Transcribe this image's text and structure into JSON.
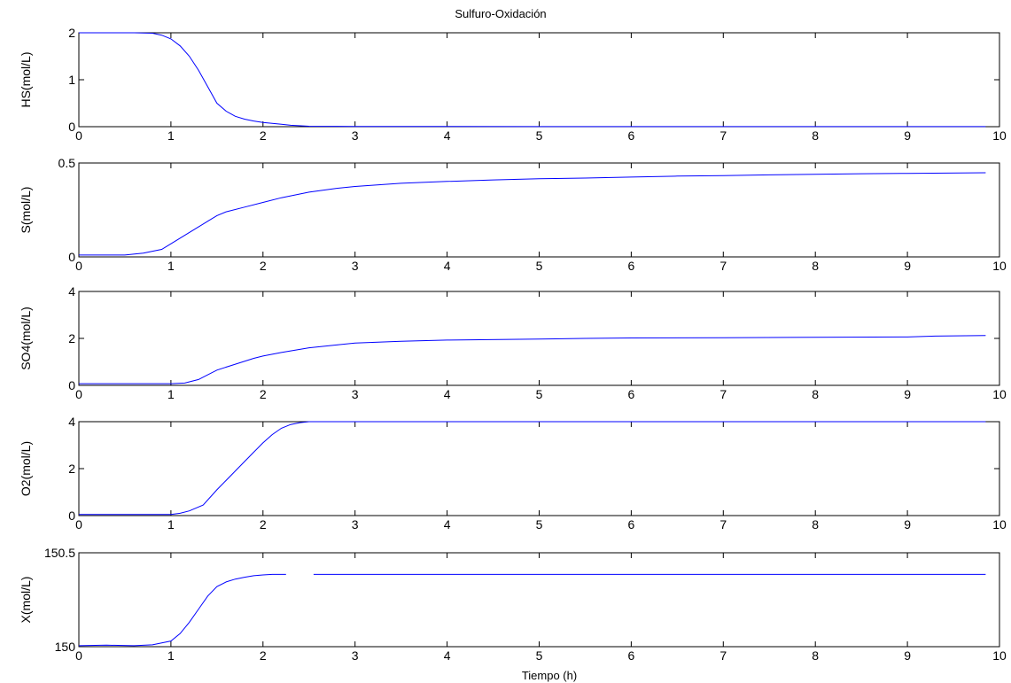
{
  "figure": {
    "title": "Sulfuro-Oxidación",
    "xlabel": "Tiempo (h)",
    "series_color": "#0000ff"
  },
  "chart_data": [
    {
      "type": "line",
      "ylabel": "HS(mol/L)",
      "xlim": [
        0,
        10
      ],
      "ylim": [
        0,
        2
      ],
      "xticks": [
        0,
        1,
        2,
        3,
        4,
        5,
        6,
        7,
        8,
        9,
        10
      ],
      "yticks": [
        0,
        1,
        2
      ],
      "series": [
        {
          "x": [
            0,
            0.6,
            0.8,
            0.9,
            1.0,
            1.1,
            1.2,
            1.3,
            1.4,
            1.5,
            1.6,
            1.7,
            1.8,
            1.9,
            2.0,
            2.1,
            2.2,
            2.3,
            2.5,
            3,
            4,
            5,
            6,
            7,
            8,
            9,
            9.85
          ],
          "y": [
            2,
            2,
            1.99,
            1.95,
            1.87,
            1.72,
            1.5,
            1.2,
            0.85,
            0.5,
            0.33,
            0.22,
            0.16,
            0.12,
            0.09,
            0.07,
            0.05,
            0.03,
            0.01,
            0.005,
            0.003,
            0.002,
            0.002,
            0.002,
            0.002,
            0.002,
            0.002
          ]
        }
      ]
    },
    {
      "type": "line",
      "ylabel": "S(mol/L)",
      "xlim": [
        0,
        10
      ],
      "ylim": [
        0,
        0.5
      ],
      "xticks": [
        0,
        1,
        2,
        3,
        4,
        5,
        6,
        7,
        8,
        9,
        10
      ],
      "yticks": [
        0,
        0.5
      ],
      "series": [
        {
          "x": [
            0,
            0.5,
            0.7,
            0.9,
            1.0,
            1.1,
            1.2,
            1.3,
            1.4,
            1.5,
            1.6,
            1.8,
            2.0,
            2.2,
            2.5,
            2.8,
            3.0,
            3.5,
            4,
            4.5,
            5,
            5.5,
            6,
            6.5,
            7,
            7.5,
            8,
            8.5,
            9,
            9.85
          ],
          "y": [
            0.01,
            0.01,
            0.02,
            0.04,
            0.07,
            0.1,
            0.13,
            0.16,
            0.19,
            0.22,
            0.24,
            0.265,
            0.29,
            0.315,
            0.345,
            0.365,
            0.375,
            0.392,
            0.402,
            0.41,
            0.416,
            0.42,
            0.425,
            0.43,
            0.433,
            0.437,
            0.44,
            0.443,
            0.445,
            0.448
          ]
        }
      ]
    },
    {
      "type": "line",
      "ylabel": "SO4(mol/L)",
      "xlim": [
        0,
        10
      ],
      "ylim": [
        0,
        4
      ],
      "xticks": [
        0,
        1,
        2,
        3,
        4,
        5,
        6,
        7,
        8,
        9,
        10
      ],
      "yticks": [
        0,
        2,
        4
      ],
      "series": [
        {
          "x": [
            0,
            1.0,
            1.15,
            1.3,
            1.4,
            1.5,
            1.7,
            1.9,
            2.0,
            2.2,
            2.5,
            2.8,
            3.0,
            3.5,
            4,
            5,
            5.5,
            6,
            7,
            8,
            9,
            9.3,
            9.85
          ],
          "y": [
            0.07,
            0.07,
            0.1,
            0.25,
            0.45,
            0.65,
            0.9,
            1.15,
            1.25,
            1.4,
            1.6,
            1.72,
            1.8,
            1.88,
            1.93,
            1.97,
            2.0,
            2.02,
            2.03,
            2.05,
            2.06,
            2.1,
            2.12
          ]
        }
      ]
    },
    {
      "type": "line",
      "ylabel": "O2(mol/L)",
      "xlim": [
        0,
        10
      ],
      "ylim": [
        0,
        4
      ],
      "xticks": [
        0,
        1,
        2,
        3,
        4,
        5,
        6,
        7,
        8,
        9,
        10
      ],
      "yticks": [
        0,
        2,
        4
      ],
      "series": [
        {
          "x": [
            0,
            1.0,
            1.1,
            1.2,
            1.35,
            1.5,
            1.7,
            1.9,
            2.0,
            2.1,
            2.2,
            2.3,
            2.4,
            2.5,
            2.6,
            3,
            4,
            5,
            6,
            7,
            8,
            9,
            9.85
          ],
          "y": [
            0.05,
            0.05,
            0.1,
            0.2,
            0.45,
            1.1,
            1.9,
            2.7,
            3.1,
            3.45,
            3.72,
            3.88,
            3.96,
            4.0,
            4.0,
            4.0,
            4.0,
            4.0,
            4.0,
            4.0,
            4.0,
            4.0,
            4.0
          ]
        }
      ]
    },
    {
      "type": "line",
      "ylabel": "X(mol/L)",
      "xlim": [
        0,
        10
      ],
      "ylim": [
        150,
        150.5
      ],
      "xticks": [
        0,
        1,
        2,
        3,
        4,
        5,
        6,
        7,
        8,
        9,
        10
      ],
      "yticks": [
        150,
        150.5
      ],
      "series": [
        {
          "x": [
            0,
            0.3,
            0.6,
            0.8,
            1.0,
            1.1,
            1.2,
            1.3,
            1.4,
            1.5,
            1.6,
            1.7,
            1.8,
            1.9,
            2.0,
            2.1,
            2.25
          ],
          "y": [
            150.005,
            150.008,
            150.005,
            150.01,
            150.03,
            150.07,
            150.13,
            150.2,
            150.27,
            150.32,
            150.345,
            150.36,
            150.37,
            150.378,
            150.382,
            150.385,
            150.385
          ]
        },
        {
          "x": [
            2.55,
            3,
            4,
            5,
            6,
            7,
            8,
            9,
            9.85
          ],
          "y": [
            150.385,
            150.385,
            150.385,
            150.385,
            150.385,
            150.385,
            150.385,
            150.385,
            150.385
          ]
        }
      ]
    }
  ]
}
